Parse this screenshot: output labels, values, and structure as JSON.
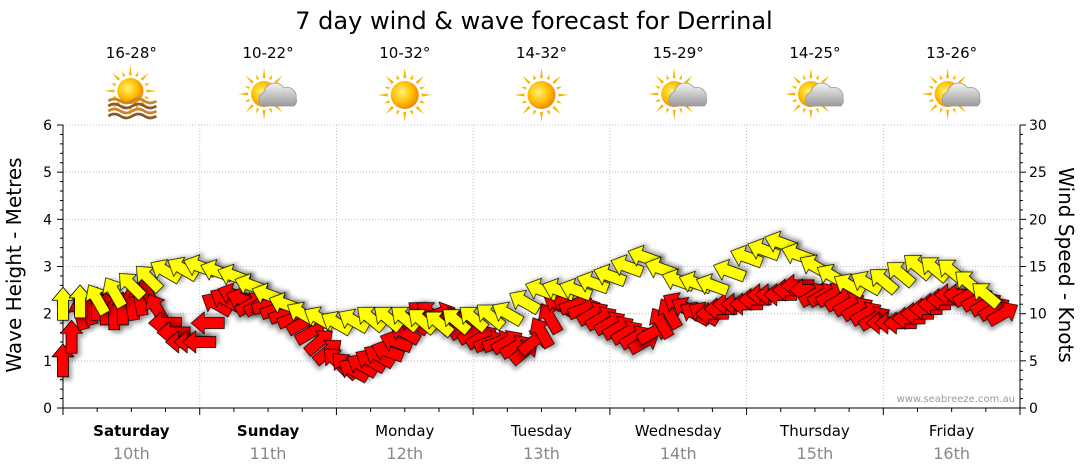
{
  "colors": {
    "wave_fill": "#FFFF00",
    "wind_fill": "#FF0000",
    "outline": "#000000",
    "grid": "#bfbfbf",
    "date_text": "#888888"
  },
  "chart_data": {
    "type": "line",
    "title": "7 day wind & wave forecast for Derrinal",
    "ylabel_left": "Wave Height - Metres",
    "ylabel_right": "Wind Speed - Knots",
    "ylim_left": [
      0,
      6
    ],
    "ylim_right": [
      0,
      30
    ],
    "yticks_left": [
      "0",
      "1",
      "2",
      "3",
      "4",
      "5",
      "6"
    ],
    "yticks_right": [
      "0",
      "5",
      "10",
      "15",
      "20",
      "25",
      "30"
    ],
    "grid": true,
    "watermark": "www.seabreeze.com.au",
    "days": [
      {
        "name": "Saturday",
        "date": "10th",
        "temp": "16-28°",
        "icon": "sun-waves-icon",
        "bold": true
      },
      {
        "name": "Sunday",
        "date": "11th",
        "temp": "10-22°",
        "icon": "sun-cloud-icon",
        "bold": true
      },
      {
        "name": "Monday",
        "date": "12th",
        "temp": "10-32°",
        "icon": "sun-icon",
        "bold": false
      },
      {
        "name": "Tuesday",
        "date": "13th",
        "temp": "14-32°",
        "icon": "sun-icon",
        "bold": false
      },
      {
        "name": "Wednesday",
        "date": "14th",
        "temp": "15-29°",
        "icon": "sun-cloud-icon",
        "bold": false
      },
      {
        "name": "Thursday",
        "date": "15th",
        "temp": "14-25°",
        "icon": "sun-cloud-icon",
        "bold": false
      },
      {
        "name": "Friday",
        "date": "16th",
        "temp": "13-26°",
        "icon": "sun-cloud-icon",
        "bold": false
      }
    ],
    "series": [
      {
        "name": "Wave Height",
        "axis": "left",
        "unit": "m",
        "x_hours": [
          0,
          6,
          12,
          18,
          24,
          30,
          36,
          42,
          48,
          54,
          60,
          66,
          72,
          78,
          84,
          90,
          96,
          102,
          108,
          114,
          120,
          126,
          132,
          138,
          144,
          150,
          156,
          162
        ],
        "values": [
          2.2,
          2.3,
          2.6,
          2.9,
          3.0,
          2.8,
          2.4,
          2.0,
          1.8,
          1.9,
          1.9,
          1.8,
          1.9,
          2.0,
          2.5,
          2.5,
          2.8,
          3.2,
          2.7,
          2.6,
          3.2,
          3.5,
          3.0,
          2.6,
          2.7,
          3.0,
          2.9,
          2.4
        ],
        "arrow_direction_deg": [
          90,
          60,
          45,
          30,
          20,
          20,
          20,
          30,
          30,
          40,
          40,
          40,
          40,
          30,
          20,
          20,
          20,
          20,
          20,
          20,
          20,
          20,
          30,
          30,
          40,
          40,
          40,
          40
        ]
      },
      {
        "name": "Wind Speed",
        "axis": "right",
        "unit": "kt",
        "x_hours": [
          0,
          3,
          6,
          9,
          12,
          15,
          18,
          21,
          24,
          27,
          30,
          33,
          36,
          39,
          42,
          45,
          48,
          51,
          54,
          57,
          60,
          63,
          66,
          69,
          72,
          75,
          78,
          81,
          84,
          87,
          90,
          93,
          96,
          99,
          102,
          105,
          108,
          111,
          114,
          117,
          120,
          123,
          126,
          129,
          132,
          135,
          138,
          141,
          144,
          147,
          150,
          153,
          156,
          159,
          162,
          165
        ],
        "values": [
          5,
          10,
          11,
          10,
          11,
          12,
          9,
          7,
          7,
          11,
          12,
          11,
          11,
          10,
          9,
          7,
          5,
          4,
          5,
          6,
          8,
          10,
          10,
          9,
          8,
          7,
          7,
          6,
          8,
          11,
          11,
          10,
          9,
          8,
          7,
          9,
          11,
          10,
          10,
          11,
          11,
          12,
          12,
          13,
          12,
          12,
          11,
          10,
          9,
          9,
          10,
          11,
          12,
          12,
          11,
          10
        ],
        "arrow_direction_deg": [
          90,
          75,
          90,
          90,
          80,
          60,
          0,
          0,
          0,
          30,
          20,
          150,
          160,
          160,
          150,
          140,
          45,
          30,
          30,
          20,
          30,
          40,
          160,
          150,
          150,
          160,
          150,
          140,
          60,
          30,
          160,
          150,
          150,
          150,
          150,
          60,
          30,
          30,
          0,
          0,
          0,
          0,
          0,
          0,
          150,
          150,
          150,
          150,
          0,
          0,
          0,
          0,
          0,
          150,
          150,
          150
        ]
      }
    ]
  }
}
